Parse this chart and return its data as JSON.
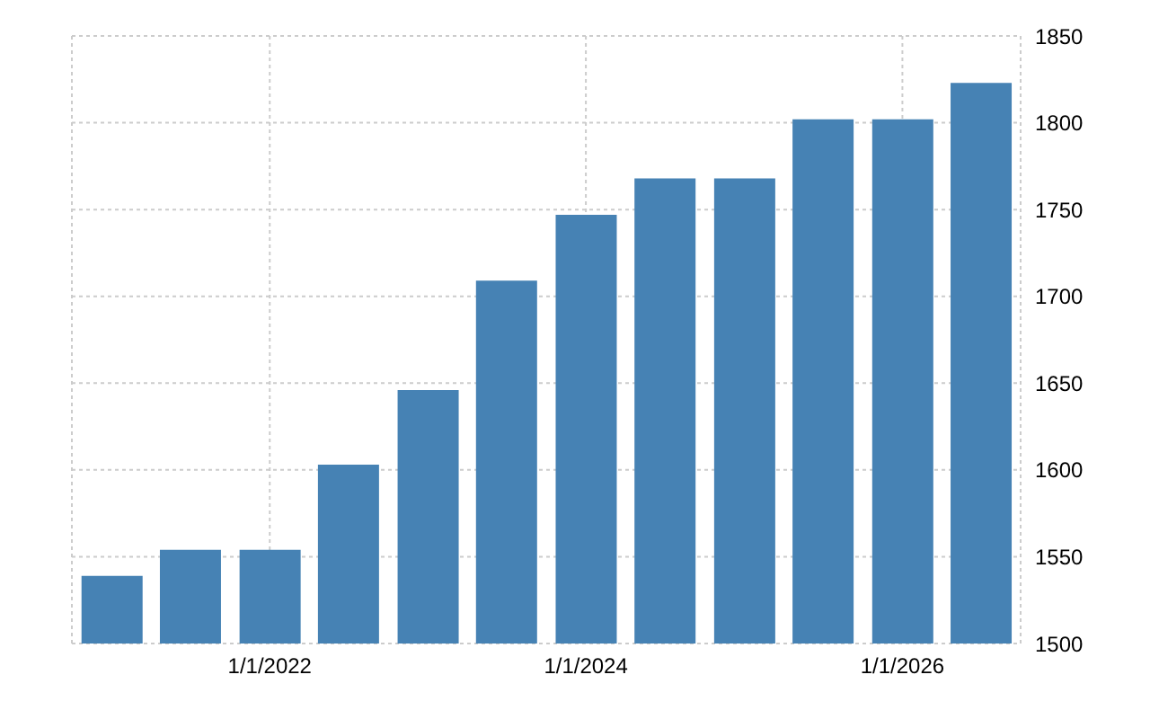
{
  "chart_data": {
    "type": "bar",
    "x": [
      "2021-01",
      "2021-07",
      "2022-01",
      "2022-07",
      "2023-01",
      "2023-07",
      "2024-01",
      "2024-07",
      "2025-01",
      "2025-07",
      "2026-01",
      "2026-07"
    ],
    "values": [
      1539,
      1554,
      1554,
      1603,
      1646,
      1709,
      1747,
      1768,
      1768,
      1802,
      1802,
      1823
    ],
    "color": "#4682b4",
    "xlim": [
      "2020-10",
      "2026-10"
    ],
    "xticks": [
      {
        "value": "2022-01",
        "label": "1/1/2022"
      },
      {
        "value": "2024-01",
        "label": "1/1/2024"
      },
      {
        "value": "2026-01",
        "label": "1/1/2026"
      }
    ],
    "ylim": [
      1500,
      1850
    ],
    "yticks": [
      1500,
      1550,
      1600,
      1650,
      1700,
      1750,
      1800,
      1850
    ],
    "grid": true
  }
}
